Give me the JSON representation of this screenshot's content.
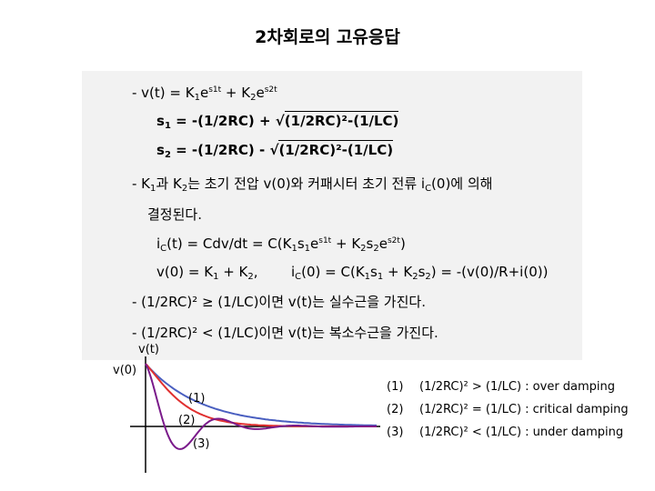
{
  "title": "2차회로의 고유응답",
  "equations": {
    "l1": {
      "a": "- v(t) = K",
      "b": "1",
      "c": "e",
      "d": "s1t",
      "e": " + K",
      "f": "2",
      "g": "e",
      "h": "s2t"
    },
    "l2": {
      "a": "s",
      "b": "1",
      "c": " = -(1/2RC) + ",
      "d": "√",
      "e": "(1/2RC)²-(1/LC)"
    },
    "l3": {
      "a": "s",
      "b": "2",
      "c": " = -(1/2RC) - ",
      "d": "√",
      "e": "(1/2RC)²-(1/LC)"
    },
    "l4": {
      "a": "- K",
      "b": "1",
      "c": "과 K",
      "d": "2",
      "e": "는 초기 전압 v(0)와 커패시터 초기 전류 i",
      "f": "C",
      "g": "(0)에 의해"
    },
    "l5": {
      "a": "결정된다."
    },
    "l6": {
      "a": "i",
      "b": "C",
      "c": "(t) = Cdv/dt = C(K",
      "d": "1",
      "e": "s",
      "f": "1",
      "g": "e",
      "h": "s1t",
      "i": " + K",
      "j": "2",
      "k": "s",
      "l": "2",
      "m": "e",
      "n": "s2t",
      "o": ")"
    },
    "l7": {
      "a": "v(0) = K",
      "b": "1",
      "c": " + K",
      "d": "2",
      "e": ",",
      "f": "i",
      "g": "C",
      "h": "(0) = C(K",
      "i": "1",
      "j": "s",
      "k": "1",
      "l": " + K",
      "m": "2",
      "n": "s",
      "o": "2",
      "p": ") = -(v(0)/R+i(0))"
    },
    "l8": {
      "a": "- (1/2RC)² ≥ (1/LC)이면 v(t)는 실수근을 가진다."
    },
    "l9": {
      "a": "- (1/2RC)² < (1/LC)이면 v(t)는 복소수근을 가진다."
    }
  },
  "graph": {
    "y_axis_label": "v(t)",
    "v0_label": "v(0)",
    "curve_labels": [
      "(1)",
      "(2)",
      "(3)"
    ],
    "colors": {
      "overdamped": "#4a5fc0",
      "critical": "#e03030",
      "underdamped": "#7a1a8a"
    }
  },
  "legend": [
    {
      "num": "(1)",
      "cond": "(1/2RC)² > (1/LC)",
      "desc": "over damping"
    },
    {
      "num": "(2)",
      "cond": "(1/2RC)² = (1/LC)",
      "desc": "critical damping"
    },
    {
      "num": "(3)",
      "cond": "(1/2RC)² < (1/LC)",
      "desc": "under damping"
    }
  ],
  "legend_sep": " : "
}
